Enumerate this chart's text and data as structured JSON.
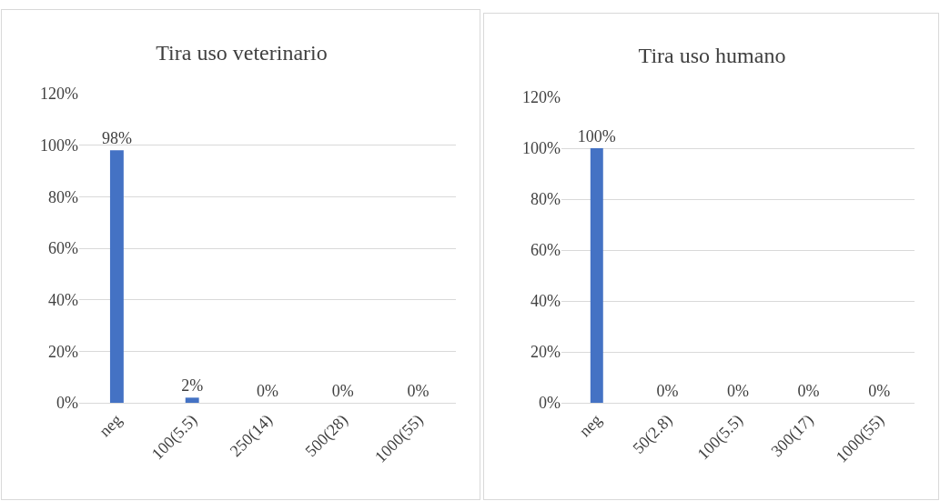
{
  "chart_data": [
    {
      "type": "bar",
      "title": "Tira uso veterinario",
      "categories": [
        "neg",
        "100(5.5)",
        "250(14)",
        "500(28)",
        "1000(55)"
      ],
      "values": [
        98,
        2,
        0,
        0,
        0
      ],
      "value_labels": [
        "98%",
        "2%",
        "0%",
        "0%",
        "0%"
      ],
      "color": "#4472c4",
      "ylim": [
        0,
        120
      ],
      "yticks": [
        {
          "value": 0,
          "label": "0%"
        },
        {
          "value": 20,
          "label": "20%"
        },
        {
          "value": 40,
          "label": "40%"
        },
        {
          "value": 60,
          "label": "60%"
        },
        {
          "value": 80,
          "label": "80%"
        },
        {
          "value": 100,
          "label": "100%"
        },
        {
          "value": 120,
          "label": "120%"
        }
      ],
      "grid": "y",
      "legend": false
    },
    {
      "type": "bar",
      "title": "Tira uso humano",
      "categories": [
        "neg",
        "50(2.8)",
        "100(5.5)",
        "300(17)",
        "1000(55)"
      ],
      "values": [
        100,
        0,
        0,
        0,
        0
      ],
      "value_labels": [
        "100%",
        "0%",
        "0%",
        "0%",
        "0%"
      ],
      "color": "#4472c4",
      "ylim": [
        0,
        120
      ],
      "yticks": [
        {
          "value": 0,
          "label": "0%"
        },
        {
          "value": 20,
          "label": "20%"
        },
        {
          "value": 40,
          "label": "40%"
        },
        {
          "value": 60,
          "label": "60%"
        },
        {
          "value": 80,
          "label": "80%"
        },
        {
          "value": 100,
          "label": "100%"
        },
        {
          "value": 120,
          "label": "120%"
        }
      ],
      "grid": "y",
      "legend": false
    }
  ]
}
